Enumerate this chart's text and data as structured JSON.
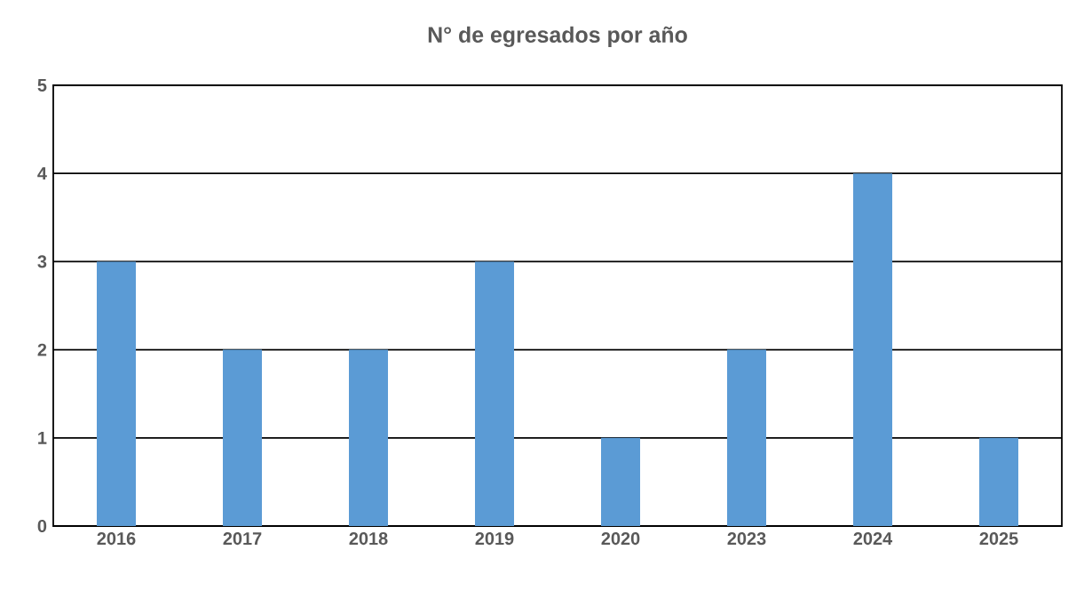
{
  "chart_data": {
    "type": "bar",
    "title": "N° de egresados por año",
    "categories": [
      "2016",
      "2017",
      "2018",
      "2019",
      "2020",
      "2023",
      "2024",
      "2025"
    ],
    "values": [
      3,
      2,
      2,
      3,
      1,
      2,
      4,
      1
    ],
    "color": "#5b9bd5",
    "ylim": [
      0,
      5
    ],
    "yticks": [
      0,
      1,
      2,
      3,
      4,
      5
    ],
    "grid": "y"
  }
}
